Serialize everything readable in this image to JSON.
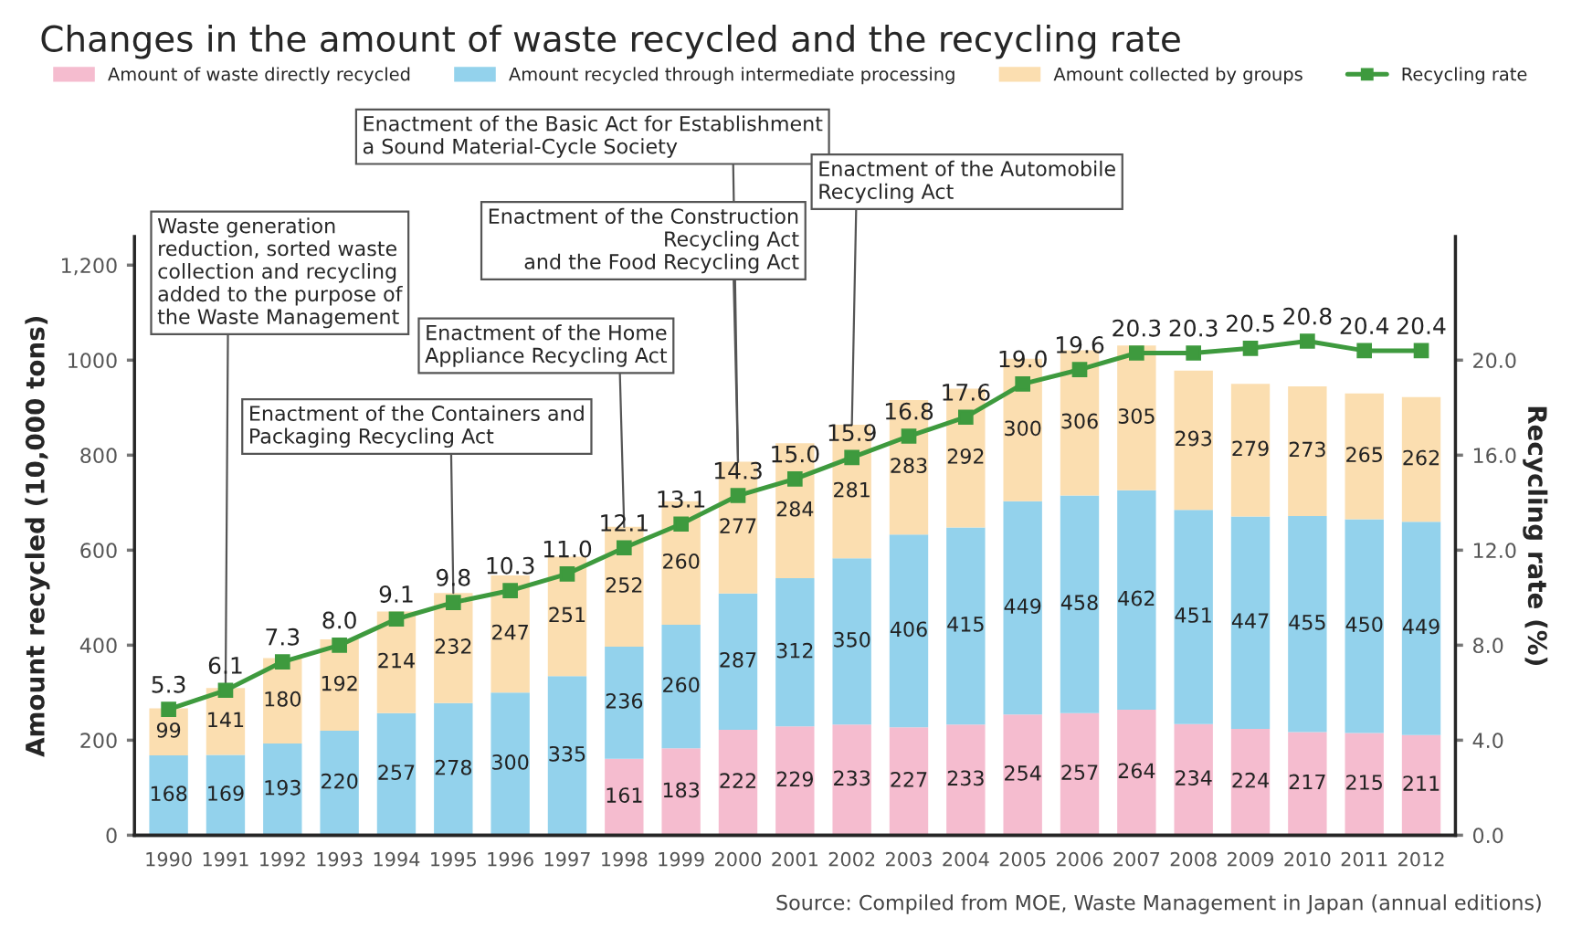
{
  "chart_data": {
    "type": "bar",
    "stacked": true,
    "title": "Changes in the amount of waste recycled and the recycling rate",
    "categories": [
      "1990",
      "1991",
      "1992",
      "1993",
      "1994",
      "1995",
      "1996",
      "1997",
      "1998",
      "1999",
      "2000",
      "2001",
      "2002",
      "2003",
      "2004",
      "2005",
      "2006",
      "2007",
      "2008",
      "2009",
      "2010",
      "2011",
      "2012"
    ],
    "series": [
      {
        "name": "Amount of waste directly recycled",
        "color": "#f5bccf",
        "values": [
          null,
          null,
          null,
          null,
          null,
          null,
          null,
          null,
          161,
          183,
          222,
          229,
          233,
          227,
          233,
          254,
          257,
          264,
          234,
          224,
          217,
          215,
          211
        ]
      },
      {
        "name": "Amount recycled through intermediate processing",
        "color": "#93d2ec",
        "values": [
          168,
          169,
          193,
          220,
          257,
          278,
          300,
          335,
          236,
          260,
          287,
          312,
          350,
          406,
          415,
          449,
          458,
          462,
          451,
          447,
          455,
          450,
          449
        ]
      },
      {
        "name": "Amount collected by groups",
        "color": "#fbdeb0",
        "values": [
          99,
          141,
          180,
          192,
          214,
          232,
          247,
          251,
          252,
          260,
          277,
          284,
          281,
          283,
          292,
          300,
          306,
          305,
          293,
          279,
          273,
          265,
          262
        ]
      },
      {
        "name": "Recycling rate",
        "type": "line",
        "axis": "y2",
        "color": "#3e9a3e",
        "marker": "square",
        "values": [
          5.3,
          6.1,
          7.3,
          8.0,
          9.1,
          9.8,
          10.3,
          11.0,
          12.1,
          13.1,
          14.3,
          15.0,
          15.9,
          16.8,
          17.6,
          19.0,
          19.6,
          20.3,
          20.3,
          20.5,
          20.8,
          20.4,
          20.4
        ],
        "value_labels": [
          "5.3",
          "6.1",
          "7.3",
          "8.0",
          "9.1",
          "9.8",
          "10.3",
          "11.0",
          "12.1",
          "13.1",
          "14.3",
          "15.0",
          "15.9",
          "16.8",
          "17.6",
          "19.0",
          "19.6",
          "20.3",
          "20.3",
          "20.5",
          "20.8",
          "20.4",
          "20.4"
        ]
      }
    ],
    "ylabel": "Amount recycled (10,000 tons)",
    "y2label": "Recycling rate (%)",
    "ylim": [
      0,
      1260
    ],
    "yticks": [
      0,
      200,
      400,
      600,
      800,
      1000,
      {
        "value": 1200,
        "label": "1,200"
      }
    ],
    "y2lim": [
      0,
      25.2
    ],
    "y2ticks": [
      {
        "value": 0,
        "label": "0.0"
      },
      {
        "value": 4,
        "label": "4.0"
      },
      {
        "value": 8,
        "label": "8.0"
      },
      {
        "value": 12,
        "label": "12.0"
      },
      {
        "value": 16,
        "label": "16.0"
      },
      {
        "value": 20,
        "label": "20.0"
      }
    ],
    "data_labels": true,
    "legend": "top",
    "grid": false,
    "annotations": [
      {
        "text": "Waste generation\nreduction, sorted waste\ncollection and recycling\nadded to the purpose of\nthe Waste Management",
        "x": "1991",
        "y": 310
      },
      {
        "text": "Enactment of the Containers and\nPackaging Recycling Act",
        "x": "1995",
        "y": 510
      },
      {
        "text": "Enactment of the Home\nAppliance Recycling Act",
        "x": "1998",
        "y": 649
      },
      {
        "text": "Enactment of the Basic Act for Establishment\na Sound Material-Cycle Society",
        "x": "2000",
        "y": 786
      },
      {
        "text": "Enactment of the Construction\nRecycling Act\nand the Food Recycling Act",
        "x": "2000",
        "y": 786
      },
      {
        "text": "Enactment of the Automobile\nRecycling Act",
        "x": "2002",
        "y": 864
      },
      "Source: Compiled from MOE, Waste Management in Japan (annual editions)"
    ]
  }
}
